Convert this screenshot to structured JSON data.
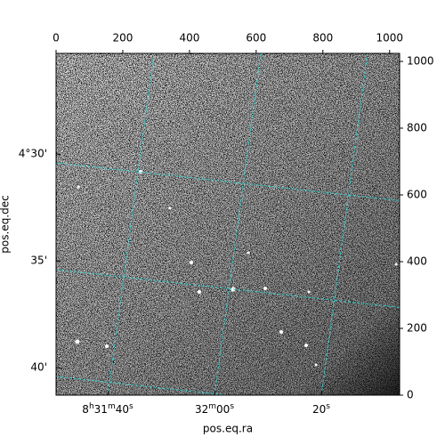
{
  "chart_data": {
    "type": "image",
    "xlabel": "pos.eq.ra",
    "ylabel": "pos.eq.dec",
    "xlim": [
      0,
      1030
    ],
    "ylim": [
      0,
      1024
    ],
    "xticks": [
      0,
      200,
      400,
      600,
      800,
      1000
    ],
    "yticks": [
      0,
      200,
      400,
      600,
      800,
      1000
    ],
    "ra_ticks": [
      "8h31m40s",
      "32m00s",
      "20s"
    ],
    "dec_ticks": [
      "4°30'",
      "35'",
      "40'"
    ],
    "grid": true,
    "grid_color": "#33cccc"
  }
}
